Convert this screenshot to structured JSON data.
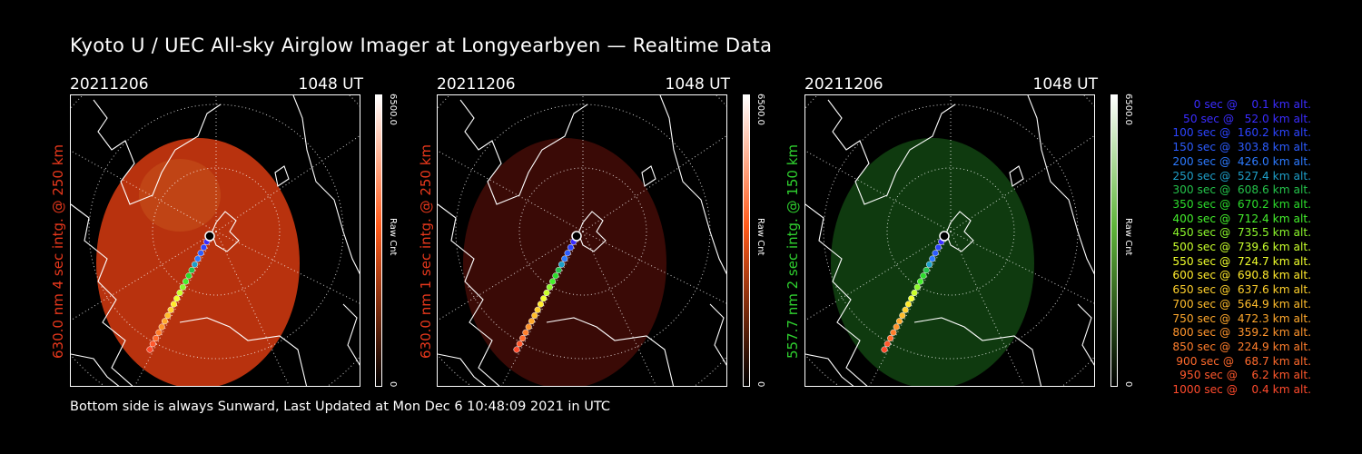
{
  "title": "Kyoto U / UEC All-sky Airglow Imager at Longyearbyen — Realtime Data",
  "footer": "Bottom side is always Sunward, Last Updated at Mon Dec  6 10:48:09 2021 in UTC",
  "panels": [
    {
      "date": "20211206",
      "time": "1048 UT",
      "label": "630.0 nm 4 sec intg. @ 250 km",
      "label_color": "#e8381c",
      "cbar_max": "6500.0",
      "cbar_min": "0",
      "cbar_unit": "Raw Cnt",
      "cbar_color": "#ff5a1a",
      "disk_color": "#b8320e"
    },
    {
      "date": "20211206",
      "time": "1048 UT",
      "label": "630.0 nm 1 sec intg. @ 250 km",
      "label_color": "#e8381c",
      "cbar_max": "6500.0",
      "cbar_min": "0",
      "cbar_unit": "Raw Cnt",
      "cbar_color": "#ff5a1a",
      "disk_color": "#3a0a06"
    },
    {
      "date": "20211206",
      "time": "1048 UT",
      "label": "557.7 nm 2 sec intg. @ 150 km",
      "label_color": "#2fd12f",
      "cbar_max": "6500.0",
      "cbar_min": "0",
      "cbar_unit": "Raw Cnt",
      "cbar_color": "#5fb53a",
      "disk_color": "#0f3a0f"
    }
  ],
  "legend": [
    {
      "text": "   0 sec @    0.1 km alt.",
      "color": "#3a2cff"
    },
    {
      "text": "  50 sec @   52.0 km alt.",
      "color": "#3a2cff"
    },
    {
      "text": " 100 sec @  160.2 km alt.",
      "color": "#2c44ff"
    },
    {
      "text": " 150 sec @  303.8 km alt.",
      "color": "#2c5cff"
    },
    {
      "text": " 200 sec @  426.0 km alt.",
      "color": "#2c7aff"
    },
    {
      "text": " 250 sec @  527.4 km alt.",
      "color": "#1e9fc9"
    },
    {
      "text": " 300 sec @  608.6 km alt.",
      "color": "#24c24a"
    },
    {
      "text": " 350 sec @  670.2 km alt.",
      "color": "#2cdc2c"
    },
    {
      "text": " 400 sec @  712.4 km alt.",
      "color": "#44ef2c"
    },
    {
      "text": " 450 sec @  735.5 km alt.",
      "color": "#8cf82c"
    },
    {
      "text": " 500 sec @  739.6 km alt.",
      "color": "#c8ff2c"
    },
    {
      "text": " 550 sec @  724.7 km alt.",
      "color": "#f0ff2c"
    },
    {
      "text": " 600 sec @  690.8 km alt.",
      "color": "#ffea2c"
    },
    {
      "text": " 650 sec @  637.6 km alt.",
      "color": "#ffd02c"
    },
    {
      "text": " 700 sec @  564.9 km alt.",
      "color": "#ffbd2c"
    },
    {
      "text": " 750 sec @  472.3 km alt.",
      "color": "#ffa82c"
    },
    {
      "text": " 800 sec @  359.2 km alt.",
      "color": "#ff942c"
    },
    {
      "text": " 850 sec @  224.9 km alt.",
      "color": "#ff7e2c"
    },
    {
      "text": " 900 sec @   68.7 km alt.",
      "color": "#ff6a2c"
    },
    {
      "text": " 950 sec @    6.2 km alt.",
      "color": "#ff582c"
    },
    {
      "text": "1000 sec @    0.4 km alt.",
      "color": "#ff4a2c"
    }
  ]
}
